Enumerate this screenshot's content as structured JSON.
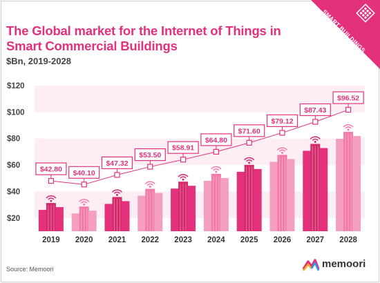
{
  "title": "The Global market for the Internet of Things in Smart Commercial Buildings",
  "subtitle": "$Bn, 2019-2028",
  "source": "Source: Memoori",
  "corner_badge": "SMART BUILDINGS",
  "logo_text": "memoori",
  "colors": {
    "accent": "#e3317b",
    "bar_light": "#f27aa9",
    "bar_dark": "#d42a6c",
    "band": "#fdeef3"
  },
  "chart_data": {
    "type": "bar",
    "title": "The Global market for the Internet of Things in Smart Commercial Buildings",
    "subtitle": "$Bn, 2019-2028",
    "categories": [
      "2019",
      "2020",
      "2021",
      "2022",
      "2023",
      "2024",
      "2025",
      "2026",
      "2027",
      "2028"
    ],
    "values": [
      42.8,
      40.1,
      47.32,
      53.5,
      58.91,
      64.8,
      71.6,
      79.12,
      87.43,
      96.52
    ],
    "data_labels": [
      "$42.80",
      "$40.10",
      "$47.32",
      "$53.50",
      "$58.91",
      "$64.80",
      "$71.60",
      "$79.12",
      "$87.43",
      "$96.52"
    ],
    "y_ticks": [
      "$20",
      "$40",
      "$60",
      "$80",
      "$100",
      "$120"
    ],
    "y_tick_values": [
      20,
      40,
      60,
      80,
      100,
      120
    ],
    "ylim": [
      10,
      120
    ],
    "grid": "horizontal bands",
    "legend": "none"
  }
}
